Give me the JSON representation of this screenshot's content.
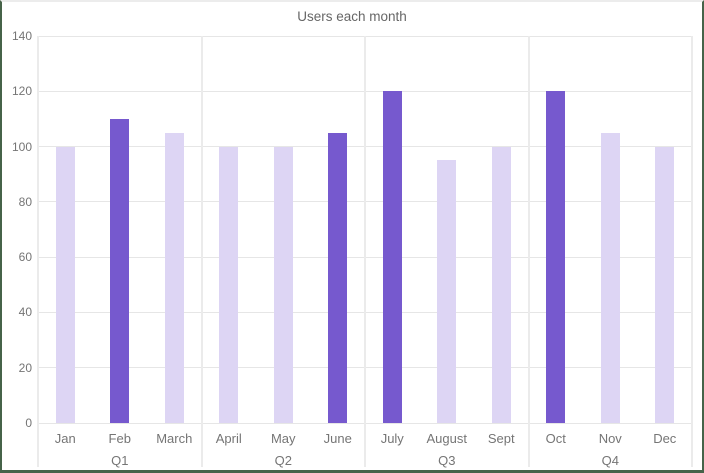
{
  "chart_data": {
    "type": "bar",
    "title": "Users each month",
    "xlabel": "",
    "ylabel": "",
    "y_axis": {
      "min": 0,
      "max": 140,
      "tick_step": 20,
      "tick_labels": [
        "0",
        "20",
        "40",
        "60",
        "80",
        "100",
        "120",
        "140"
      ]
    },
    "grid": "horizontal-on, quarter-dividers-on",
    "legend": "none",
    "groups": [
      {
        "label": "Q1",
        "bars": [
          {
            "month": "Jan",
            "value": 100,
            "tone": "light"
          },
          {
            "month": "Feb",
            "value": 110,
            "tone": "dark"
          },
          {
            "month": "March",
            "value": 105,
            "tone": "light"
          }
        ]
      },
      {
        "label": "Q2",
        "bars": [
          {
            "month": "April",
            "value": 100,
            "tone": "light"
          },
          {
            "month": "May",
            "value": 100,
            "tone": "light"
          },
          {
            "month": "June",
            "value": 105,
            "tone": "dark"
          }
        ]
      },
      {
        "label": "Q3",
        "bars": [
          {
            "month": "July",
            "value": 120,
            "tone": "dark"
          },
          {
            "month": "August",
            "value": 95,
            "tone": "light"
          },
          {
            "month": "Sept",
            "value": 100,
            "tone": "light"
          }
        ]
      },
      {
        "label": "Q4",
        "bars": [
          {
            "month": "Oct",
            "value": 120,
            "tone": "dark"
          },
          {
            "month": "Nov",
            "value": 105,
            "tone": "light"
          },
          {
            "month": "Dec",
            "value": 100,
            "tone": "light"
          }
        ]
      }
    ],
    "colors": {
      "bar_dark": "#7659ce",
      "bar_light": "#ddd5f4",
      "gridline": "#e6e6e6",
      "divider": "#ebebeb",
      "axis_text": "#757575",
      "title_text": "#666666",
      "frame_border": "#466349",
      "top_border": "#ececec"
    }
  }
}
